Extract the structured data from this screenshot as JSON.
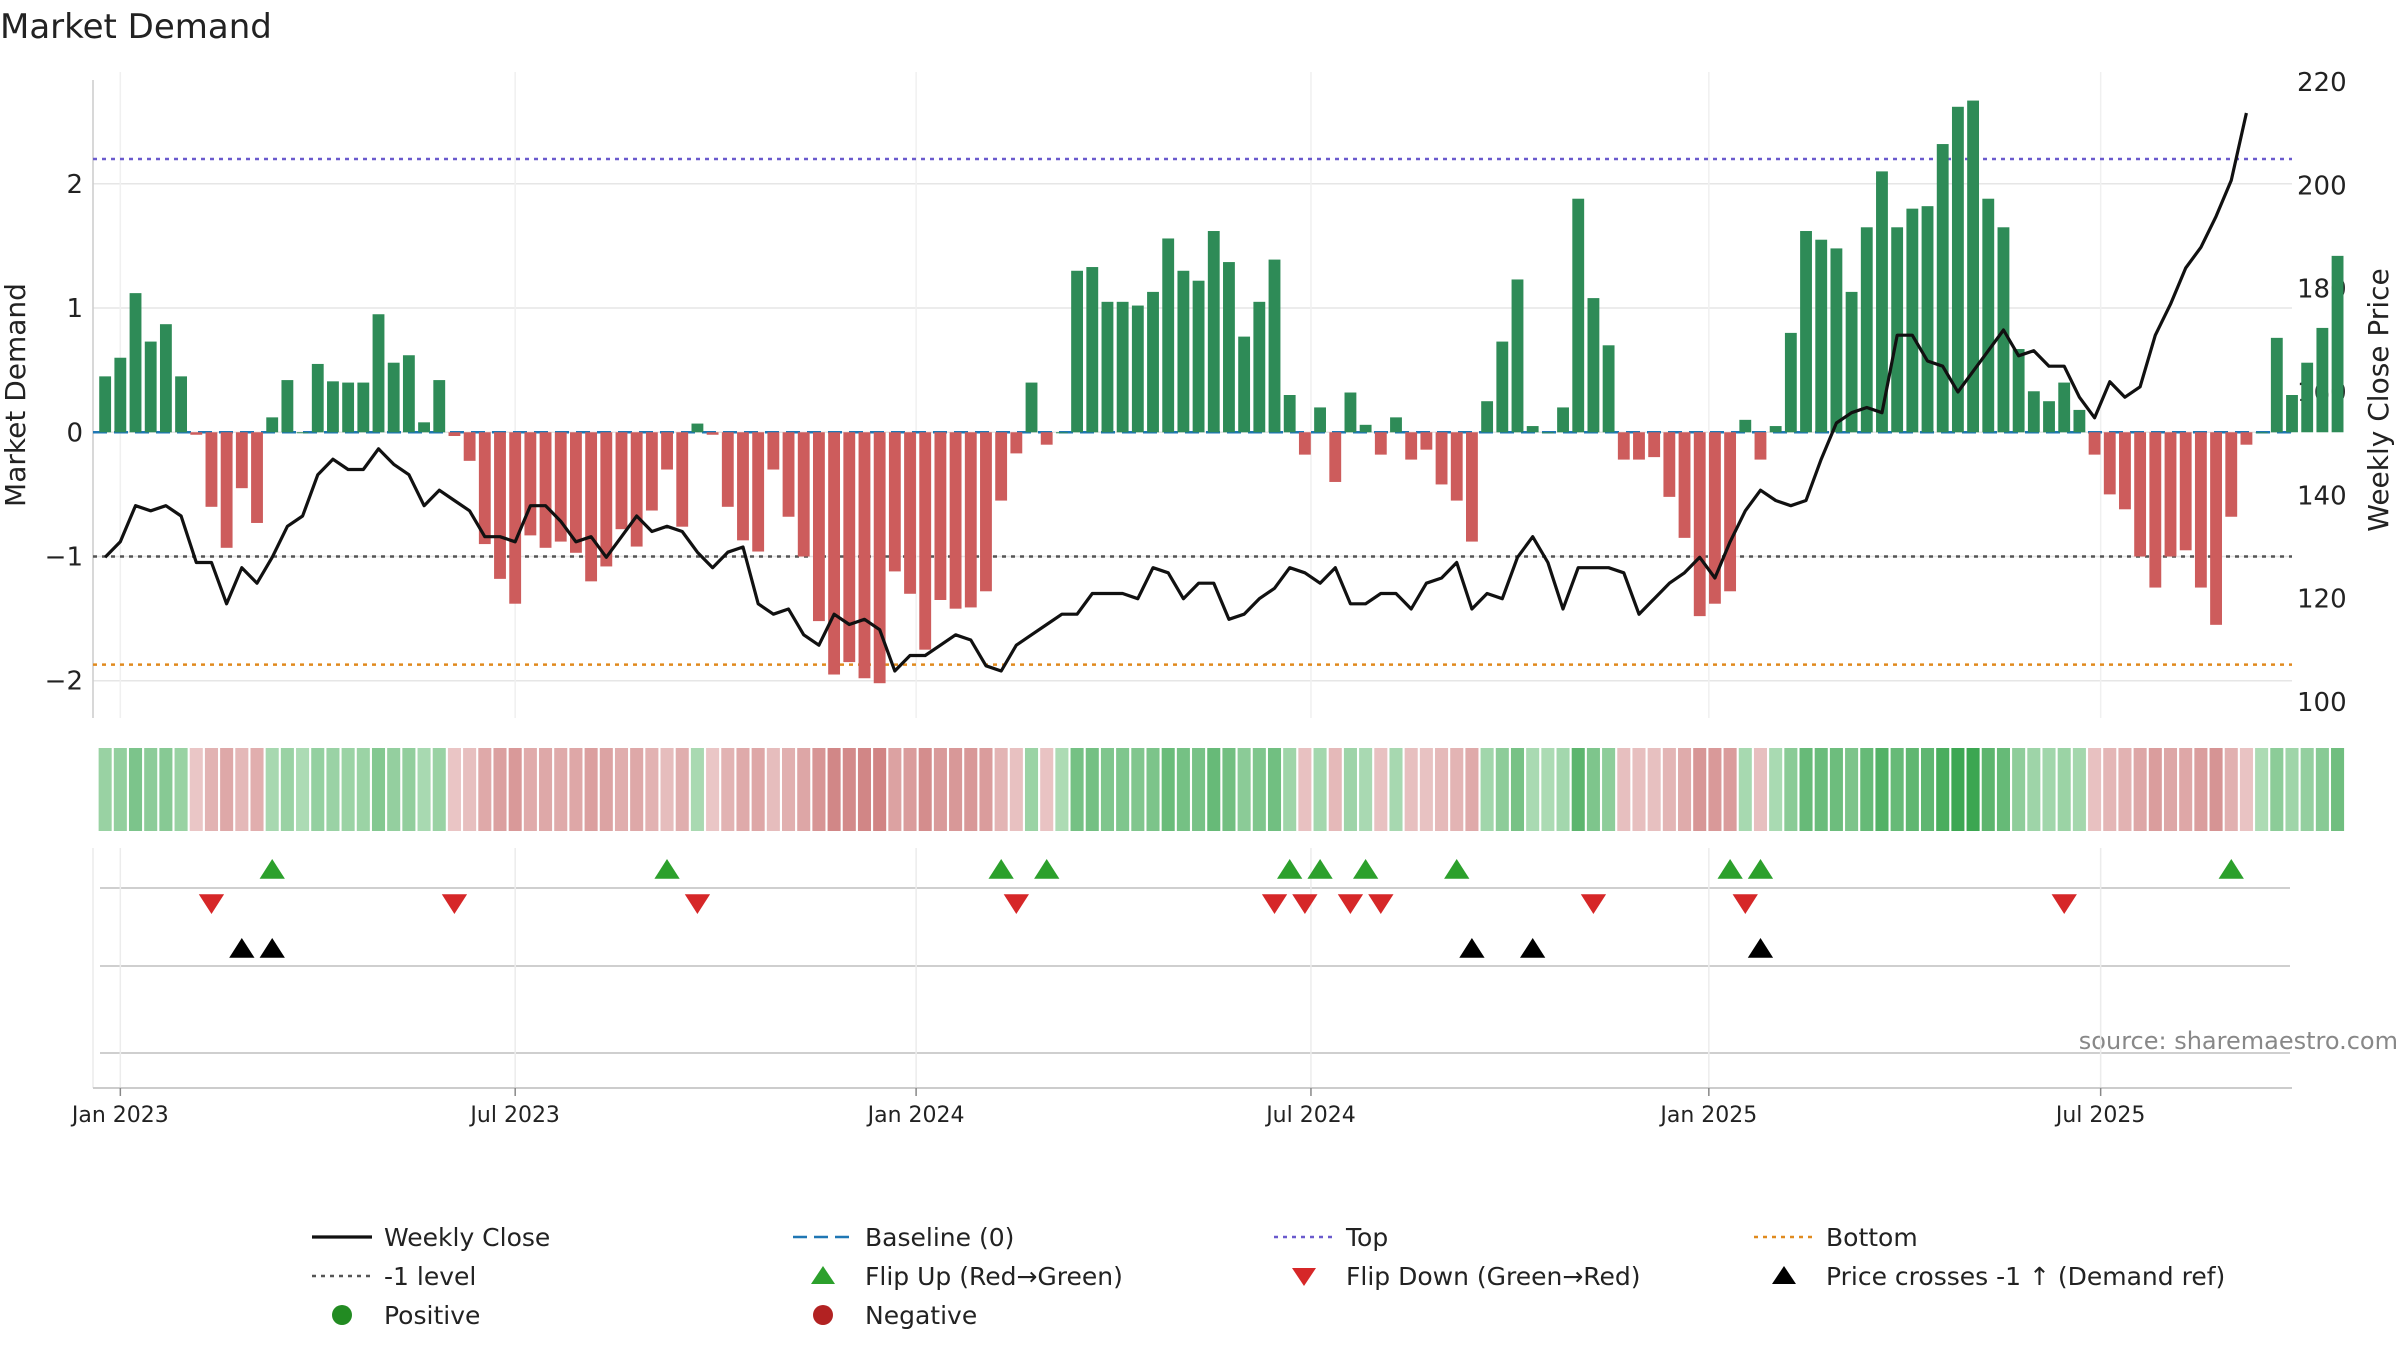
{
  "chart_data": {
    "type": "bar",
    "title": "Market Demand",
    "ylabel": "Market Demand",
    "y2label": "Weekly Close Price",
    "source": "source: sharemaestro.com",
    "ylim": [
      -2.3,
      2.9
    ],
    "y2lim": [
      100,
      220
    ],
    "yticks": [
      {
        "value": 2,
        "label": "2"
      },
      {
        "value": 1,
        "label": "1"
      },
      {
        "value": 0,
        "label": "0"
      },
      {
        "value": -1,
        "label": "−1"
      },
      {
        "value": -2,
        "label": "−2"
      }
    ],
    "y2ticks": [
      {
        "value": 220,
        "label": "220"
      },
      {
        "value": 200,
        "label": "200"
      },
      {
        "value": 180,
        "label": "180"
      },
      {
        "value": 160,
        "label": "160"
      },
      {
        "value": 140,
        "label": "140"
      },
      {
        "value": 120,
        "label": "120"
      },
      {
        "value": 100,
        "label": "100"
      }
    ],
    "xrange": [
      -0.8,
      144.0
    ],
    "xticks": [
      {
        "index": 1,
        "label": "Jan 2023"
      },
      {
        "index": 27,
        "label": "Jul 2023"
      },
      {
        "index": 53.4,
        "label": "Jan 2024"
      },
      {
        "index": 79.4,
        "label": "Jul 2024"
      },
      {
        "index": 105.6,
        "label": "Jan 2025"
      },
      {
        "index": 131.4,
        "label": "Jul 2025"
      }
    ],
    "reference_lines": {
      "top": 2.2,
      "bottom": -1.87,
      "minus_one": -1.0,
      "baseline": 0
    },
    "demand": [
      0.45,
      0.6,
      1.12,
      0.73,
      0.87,
      0.45,
      -0.02,
      -0.6,
      -0.93,
      -0.45,
      -0.73,
      0.12,
      0.42,
      0.0,
      0.55,
      0.41,
      0.4,
      0.4,
      0.95,
      0.56,
      0.62,
      0.08,
      0.42,
      -0.03,
      -0.23,
      -0.9,
      -1.18,
      -1.38,
      -0.83,
      -0.93,
      -0.88,
      -0.97,
      -1.2,
      -1.08,
      -0.78,
      -0.92,
      -0.63,
      -0.3,
      -0.76,
      0.07,
      -0.02,
      -0.6,
      -0.87,
      -0.96,
      -0.3,
      -0.68,
      -1.0,
      -1.52,
      -1.95,
      -1.85,
      -1.98,
      -2.02,
      -1.12,
      -1.3,
      -1.75,
      -1.35,
      -1.42,
      -1.41,
      -1.28,
      -0.55,
      -0.17,
      0.4,
      -0.1,
      0.0,
      1.3,
      1.33,
      1.05,
      1.05,
      1.02,
      1.13,
      1.56,
      1.3,
      1.22,
      1.62,
      1.37,
      0.77,
      1.05,
      1.39,
      0.3,
      -0.18,
      0.2,
      -0.4,
      0.32,
      0.06,
      -0.18,
      0.12,
      -0.22,
      -0.14,
      -0.42,
      -0.55,
      -0.88,
      0.25,
      0.73,
      1.23,
      0.05,
      0.0,
      0.2,
      1.88,
      1.08,
      0.7,
      -0.22,
      -0.22,
      -0.2,
      -0.52,
      -0.85,
      -1.48,
      -1.38,
      -1.28,
      0.1,
      -0.22,
      0.05,
      0.8,
      1.62,
      1.55,
      1.48,
      1.13,
      1.65,
      2.1,
      1.65,
      1.8,
      1.82,
      2.32,
      2.62,
      2.67,
      1.88,
      1.65,
      0.67,
      0.33,
      0.25,
      0.4,
      0.18,
      -0.18,
      -0.5,
      -0.62,
      -1.0,
      -1.25,
      -1.0,
      -0.95,
      -1.25,
      -1.55,
      -0.68,
      -0.1,
      0.0,
      0.76,
      0.3,
      0.56,
      0.84,
      1.42
    ],
    "weekly_close": [
      128,
      131,
      138,
      137,
      138,
      136,
      127,
      127,
      119,
      126,
      123,
      128,
      134,
      136,
      144,
      147,
      145,
      145,
      149,
      146,
      144,
      138,
      141,
      139,
      137,
      132,
      132,
      131,
      138,
      138,
      135,
      131,
      132,
      128,
      132,
      136,
      133,
      134,
      133,
      129,
      126,
      129,
      130,
      119,
      117,
      118,
      113,
      111,
      117,
      115,
      116,
      114,
      106,
      109,
      109,
      111,
      113,
      112,
      107,
      106,
      111,
      113,
      115,
      117,
      117,
      121,
      121,
      121,
      120,
      126,
      125,
      120,
      123,
      123,
      116,
      117,
      120,
      122,
      126,
      125,
      123,
      126,
      119,
      119,
      121,
      121,
      118,
      123,
      124,
      127,
      118,
      121,
      120,
      128,
      132,
      127,
      118,
      126,
      126,
      126,
      125,
      117,
      120,
      123,
      125,
      128,
      124,
      131,
      137,
      141,
      139,
      138,
      139,
      147,
      154,
      156,
      157,
      156,
      171,
      171,
      166,
      165,
      160,
      164,
      168,
      172,
      167,
      168,
      165,
      165,
      159,
      155,
      162,
      159,
      161,
      171,
      177,
      184,
      188,
      194,
      201,
      214
    ]
  },
  "sparkline_rows": {
    "flip_up": [
      11,
      37,
      59,
      62,
      78,
      80,
      83,
      89,
      107,
      109,
      140
    ],
    "flip_down": [
      7,
      23,
      39,
      60,
      77,
      79,
      82,
      84,
      98,
      108,
      129
    ],
    "price_cross": [
      9,
      11,
      90,
      94,
      109
    ]
  },
  "legend": [
    {
      "key": "weekly_close",
      "label": "Weekly Close",
      "color": "#111111",
      "marker": "line-solid"
    },
    {
      "key": "baseline",
      "label": "Baseline (0)",
      "color": "#1f77b4",
      "marker": "line-dash"
    },
    {
      "key": "top",
      "label": "Top",
      "color": "#6a5acd",
      "marker": "line-dot"
    },
    {
      "key": "bottom",
      "label": "Bottom",
      "color": "#e08a1e",
      "marker": "line-dot"
    },
    {
      "key": "minus_one",
      "label": "-1 level",
      "color": "#555555",
      "marker": "line-dot"
    },
    {
      "key": "flip_up",
      "label": "Flip Up (Red→Green)",
      "color": "#2ca02c",
      "marker": "triangle-up"
    },
    {
      "key": "flip_down",
      "label": "Flip Down (Green→Red)",
      "color": "#d62728",
      "marker": "triangle-down"
    },
    {
      "key": "price_cross",
      "label": "Price crosses -1 ↑ (Demand ref)",
      "color": "#000000",
      "marker": "triangle-up"
    },
    {
      "key": "positive",
      "label": "Positive",
      "color": "#228b22",
      "marker": "circle"
    },
    {
      "key": "negative",
      "label": "Negative",
      "color": "#b22222",
      "marker": "circle"
    }
  ],
  "colors": {
    "positive_bar": "#2e8b57",
    "negative_bar": "#cd5c5c",
    "grid": "#e6e6e6",
    "axis": "#cccccc",
    "text": "#222222",
    "source_text": "#888888"
  }
}
